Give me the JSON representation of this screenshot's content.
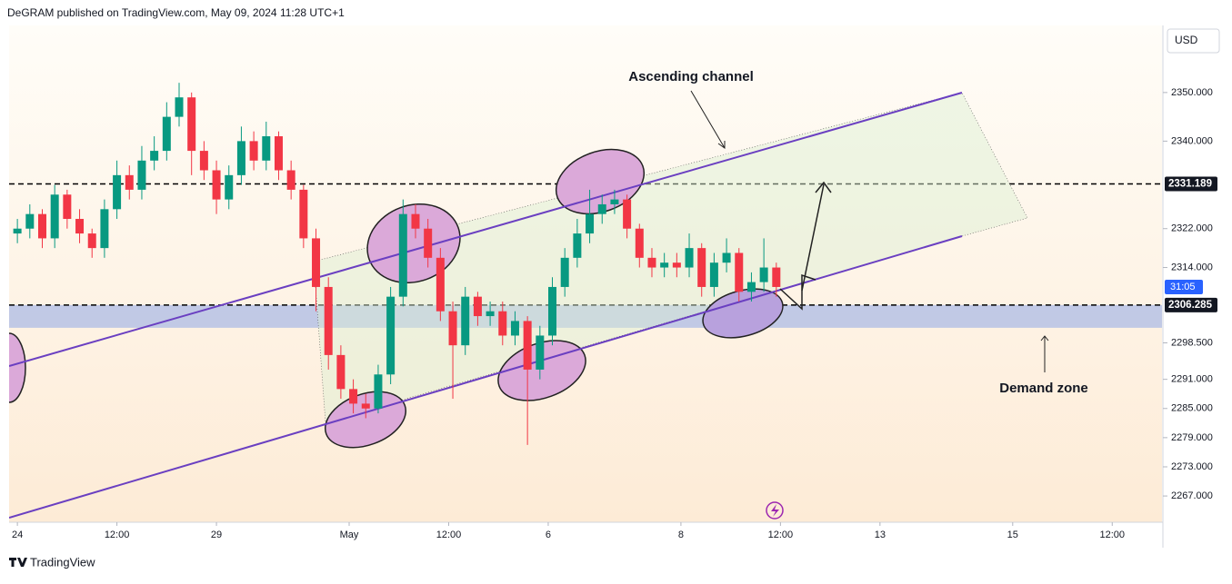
{
  "header": "DeGRAM published on TradingView.com, May 09, 2024 11:28 UTC+1",
  "footer": "TradingView",
  "chart_data": {
    "type": "candlestick",
    "currency": "USD",
    "up_color": "#089981",
    "down_color": "#f23645",
    "x": [
      0,
      1.5,
      3,
      4.5,
      6,
      7.5,
      9,
      10.5,
      12,
      13.5,
      15,
      16.5,
      18,
      19.5,
      21,
      22.5,
      24,
      25.5,
      27,
      28.5,
      30,
      31.5,
      33,
      34.5,
      36,
      37.5,
      39,
      40.5,
      42,
      43.5,
      45,
      46.5,
      48,
      49.5,
      51,
      52.5,
      54,
      55.5,
      57,
      58.5,
      60,
      61.5,
      63,
      64.5,
      66,
      67.5,
      69,
      70.5,
      72,
      73.5,
      75,
      76.5,
      78,
      79.5,
      81,
      82.5,
      84,
      85.5,
      87,
      88.5,
      90,
      91.5
    ],
    "open": [
      2321,
      2322,
      2325,
      2320,
      2329,
      2324,
      2321,
      2318,
      2326,
      2333,
      2330,
      2336,
      2338,
      2345,
      2349,
      2338,
      2334,
      2328,
      2333,
      2340,
      2336,
      2341,
      2334,
      2330,
      2320,
      2310,
      2296,
      2289,
      2286,
      2285,
      2292,
      2308,
      2325,
      2322,
      2316,
      2305,
      2298,
      2308,
      2304,
      2305,
      2300,
      2303,
      2293,
      2300,
      2310,
      2316,
      2321,
      2325,
      2327,
      2328,
      2322,
      2316,
      2314,
      2315,
      2314,
      2318,
      2310,
      2315,
      2317,
      2309,
      2311,
      2314
    ],
    "high": [
      2324,
      2327,
      2326,
      2331,
      2330,
      2326,
      2322,
      2328,
      2336,
      2335,
      2339,
      2341,
      2348,
      2352,
      2350,
      2340,
      2336,
      2335,
      2343,
      2342,
      2344,
      2342,
      2336,
      2331,
      2322,
      2312,
      2298,
      2291,
      2288,
      2294,
      2310,
      2328,
      2327,
      2324,
      2318,
      2307,
      2310,
      2309,
      2307,
      2307,
      2305,
      2304,
      2302,
      2312,
      2318,
      2324,
      2330,
      2329,
      2330,
      2329,
      2323,
      2318,
      2317,
      2317,
      2321,
      2319,
      2317,
      2320,
      2318,
      2313,
      2320,
      2315
    ],
    "low": [
      2319,
      2320,
      2318,
      2318,
      2322,
      2319,
      2316,
      2316,
      2324,
      2328,
      2328,
      2334,
      2336,
      2343,
      2333,
      2332,
      2325,
      2326,
      2331,
      2334,
      2334,
      2332,
      2328,
      2318,
      2305,
      2293,
      2287,
      2284,
      2283,
      2284,
      2290,
      2306,
      2320,
      2314,
      2303,
      2287,
      2296,
      2302,
      2302,
      2298,
      2298,
      2277.5,
      2291,
      2298,
      2308,
      2314,
      2319,
      2323,
      2325,
      2320,
      2314,
      2312,
      2312,
      2312,
      2312,
      2308,
      2308,
      2313,
      2307,
      2307,
      2309,
      2308
    ],
    "close": [
      2322,
      2325,
      2320,
      2329,
      2324,
      2321,
      2318,
      2326,
      2333,
      2330,
      2336,
      2338,
      2345,
      2349,
      2338,
      2334,
      2328,
      2333,
      2340,
      2336,
      2341,
      2334,
      2330,
      2320,
      2310,
      2296,
      2289,
      2286,
      2285,
      2292,
      2308,
      2325,
      2322,
      2316,
      2305,
      2298,
      2308,
      2304,
      2305,
      2300,
      2303,
      2293,
      2300,
      2310,
      2316,
      2321,
      2325,
      2327,
      2328,
      2322,
      2316,
      2314,
      2315,
      2314,
      2318,
      2310,
      2315,
      2317,
      2309,
      2311,
      2314,
      2310
    ],
    "countdown": "31:05",
    "ylim": [
      2261.6,
      2363.8
    ],
    "yticks": [
      {
        "value": 2350,
        "label": "2350.000"
      },
      {
        "value": 2340,
        "label": "2340.000"
      },
      {
        "value": 2322,
        "label": "2322.000"
      },
      {
        "value": 2314,
        "label": "2314.000"
      },
      {
        "value": 2298.5,
        "label": "2298.500"
      },
      {
        "value": 2291,
        "label": "2291.000"
      },
      {
        "value": 2285,
        "label": "2285.000"
      },
      {
        "value": 2279,
        "label": "2279.000"
      },
      {
        "value": 2273,
        "label": "2273.000"
      },
      {
        "value": 2267,
        "label": "2267.000"
      }
    ],
    "xlim": [
      -1,
      138
    ],
    "xticks": [
      {
        "value": 0,
        "label": "24"
      },
      {
        "value": 12,
        "label": "12:00"
      },
      {
        "value": 24,
        "label": "29"
      },
      {
        "value": 40,
        "label": "May"
      },
      {
        "value": 52,
        "label": "12:00"
      },
      {
        "value": 64,
        "label": "6"
      },
      {
        "value": 80,
        "label": "8"
      },
      {
        "value": 92,
        "label": "12:00"
      },
      {
        "value": 104,
        "label": "13"
      },
      {
        "value": 120,
        "label": "15"
      },
      {
        "value": 132,
        "label": "12:00"
      }
    ],
    "price_lines": [
      {
        "value": 2331.189,
        "label": "2331.189"
      },
      {
        "value": 2306.285,
        "label": "2306.285"
      }
    ],
    "zone": {
      "low": 2301.6,
      "high": 2306.285
    },
    "annotations": [
      "Ascending channel",
      "Demand zone"
    ]
  }
}
